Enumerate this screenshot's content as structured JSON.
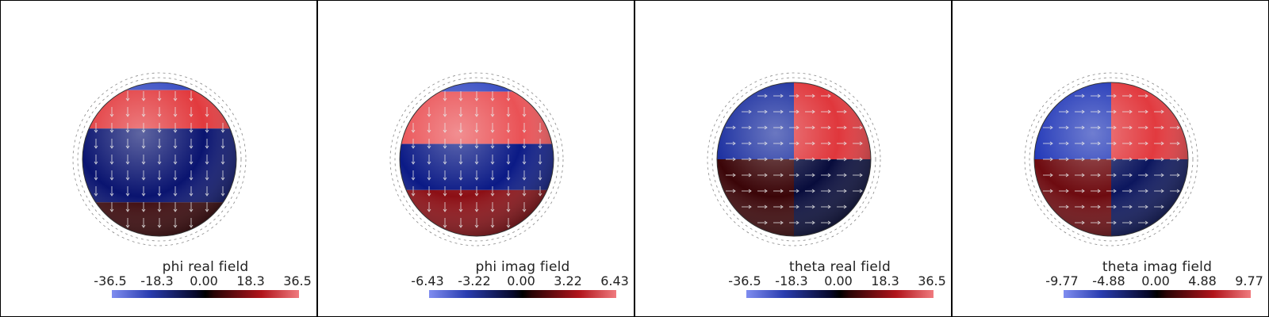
{
  "panels": [
    {
      "title": "phi real field",
      "ticks": [
        "-36.5",
        "-18.3",
        "0.00",
        "18.3",
        "36.5"
      ],
      "bands": [
        {
          "color": "#3a4fc4",
          "from": 0.0,
          "to": 0.05
        },
        {
          "color": "#e23a3e",
          "from": 0.05,
          "to": 0.3
        },
        {
          "color": "#0a1470",
          "from": 0.3,
          "to": 0.78
        },
        {
          "color": "#3a0508",
          "from": 0.78,
          "to": 1.0
        }
      ],
      "arrows": "vertical"
    },
    {
      "title": "phi imag field",
      "ticks": [
        "-6.43",
        "-3.22",
        "0.00",
        "3.22",
        "6.43"
      ],
      "bands": [
        {
          "color": "#3a4fc4",
          "from": 0.0,
          "to": 0.06
        },
        {
          "color": "#ea5256",
          "from": 0.06,
          "to": 0.4
        },
        {
          "color": "#0b1a86",
          "from": 0.4,
          "to": 0.7
        },
        {
          "color": "#8c0f15",
          "from": 0.7,
          "to": 1.0
        }
      ],
      "arrows": "vertical"
    },
    {
      "title": "theta real field",
      "ticks": [
        "-36.5",
        "-18.3",
        "0.00",
        "18.3",
        "36.5"
      ],
      "quadrants": [
        {
          "color": "#1b2fa0"
        },
        {
          "color": "#e0373c"
        },
        {
          "color": "#3b0508"
        },
        {
          "color": "#080c3c"
        }
      ],
      "arrows": "horizontal"
    },
    {
      "title": "theta imag field",
      "ticks": [
        "-9.77",
        "-4.88",
        "0.00",
        "4.88",
        "9.77"
      ],
      "quadrants": [
        {
          "color": "#2238b8"
        },
        {
          "color": "#e23a3f"
        },
        {
          "color": "#6e0b10"
        },
        {
          "color": "#0c165e"
        }
      ],
      "arrows": "horizontal"
    }
  ]
}
